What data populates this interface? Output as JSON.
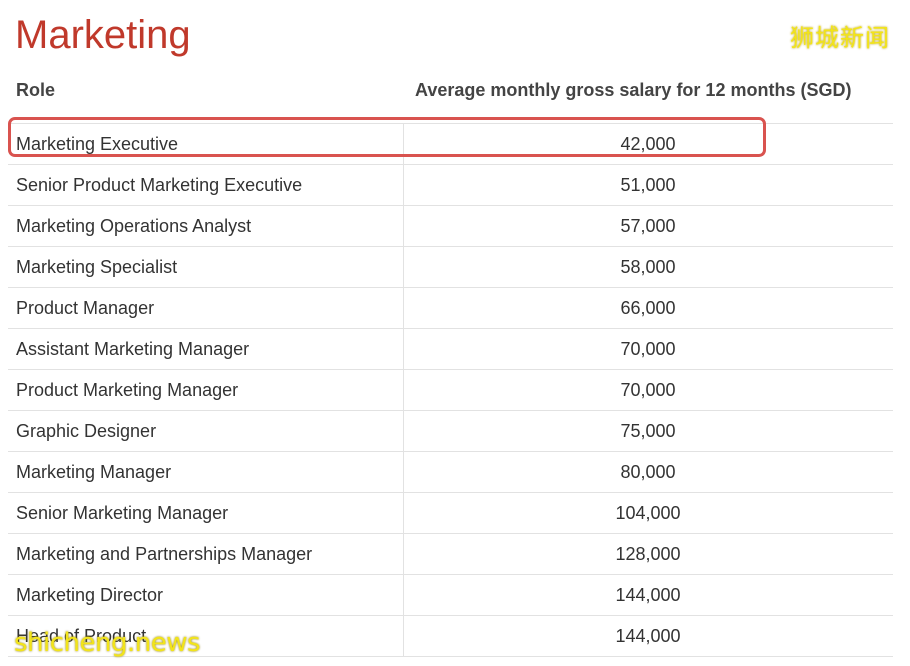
{
  "title": "Marketing",
  "watermark_top": "狮城新闻",
  "watermark_bottom": "shicheng.news",
  "table": {
    "headers": {
      "role": "Role",
      "salary": "Average monthly gross salary for 12 months (SGD)"
    },
    "rows": [
      {
        "role": "Marketing Executive",
        "salary": "42,000",
        "highlighted": true
      },
      {
        "role": "Senior Product Marketing Executive",
        "salary": "51,000"
      },
      {
        "role": "Marketing Operations Analyst",
        "salary": "57,000"
      },
      {
        "role": "Marketing Specialist",
        "salary": "58,000"
      },
      {
        "role": "Product Manager",
        "salary": "66,000"
      },
      {
        "role": "Assistant Marketing Manager",
        "salary": "70,000"
      },
      {
        "role": "Product Marketing Manager",
        "salary": "70,000"
      },
      {
        "role": "Graphic Designer",
        "salary": "75,000"
      },
      {
        "role": "Marketing Manager",
        "salary": "80,000"
      },
      {
        "role": "Senior Marketing Manager",
        "salary": "104,000"
      },
      {
        "role": "Marketing and Partnerships Manager",
        "salary": "128,000"
      },
      {
        "role": "Marketing Director",
        "salary": "144,000"
      },
      {
        "role": "Head of Product",
        "salary": "144,000"
      }
    ]
  },
  "colors": {
    "title": "#c0392b",
    "highlight_border": "#d9534f",
    "watermark": "#f2e41a"
  }
}
